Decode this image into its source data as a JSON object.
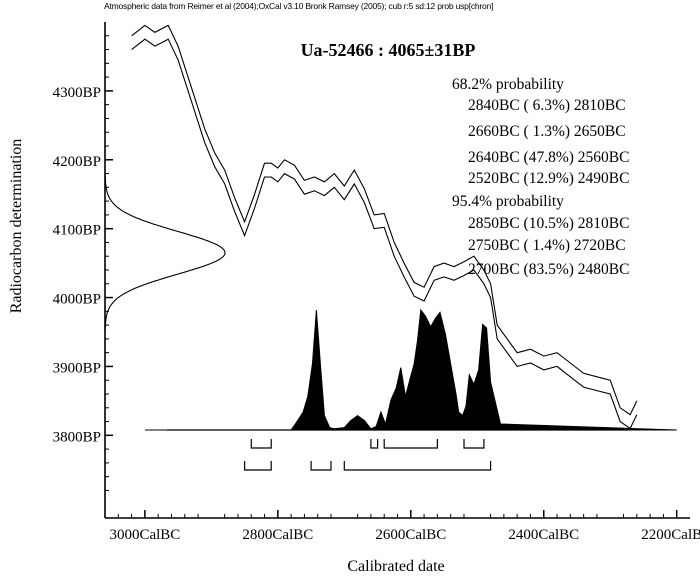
{
  "header_text": "Atmospheric data from Reimer et al (2004);OxCal v3.10 Bronk Ramsey (2005); cub r:5 sd:12 prob usp[chron]",
  "chart_data": {
    "type": "area",
    "title": "Ua-52466 : 4065±31BP",
    "xlabel": "Calibrated date",
    "ylabel": "Radiocarbon determination",
    "xlim": [
      3060,
      2180
    ],
    "ylim": [
      3680,
      4400
    ],
    "x_ticks": [
      {
        "value": 3000,
        "label": "3000CalBC"
      },
      {
        "value": 2800,
        "label": "2800CalBC"
      },
      {
        "value": 2600,
        "label": "2600CalBC"
      },
      {
        "value": 2400,
        "label": "2400CalBC"
      },
      {
        "value": 2200,
        "label": "2200CalBC"
      }
    ],
    "y_ticks": [
      {
        "value": 4300,
        "label": "4300BP"
      },
      {
        "value": 4200,
        "label": "4200BP"
      },
      {
        "value": 4100,
        "label": "4100BP"
      },
      {
        "value": 4000,
        "label": "4000BP"
      },
      {
        "value": 3900,
        "label": "3900BP"
      },
      {
        "value": 3800,
        "label": "3800BP"
      }
    ],
    "measurement": {
      "mean_bp": 4065,
      "sigma": 31
    },
    "calibration_curve": {
      "x": [
        3020,
        3000,
        2985,
        2965,
        2950,
        2930,
        2910,
        2895,
        2880,
        2865,
        2850,
        2835,
        2820,
        2810,
        2800,
        2790,
        2775,
        2760,
        2745,
        2730,
        2715,
        2700,
        2685,
        2670,
        2655,
        2640,
        2625,
        2610,
        2595,
        2580,
        2565,
        2550,
        2535,
        2520,
        2505,
        2490,
        2480,
        2470,
        2455,
        2440,
        2420,
        2400,
        2380,
        2360,
        2340,
        2320,
        2300,
        2285,
        2270,
        2260
      ],
      "y": [
        4370,
        4385,
        4375,
        4385,
        4355,
        4295,
        4235,
        4200,
        4175,
        4135,
        4100,
        4140,
        4185,
        4185,
        4178,
        4190,
        4182,
        4160,
        4165,
        4158,
        4170,
        4152,
        4175,
        4148,
        4110,
        4112,
        4070,
        4040,
        4012,
        4005,
        4035,
        4040,
        4035,
        4042,
        4050,
        4030,
        4010,
        3950,
        3930,
        3910,
        3915,
        3905,
        3910,
        3895,
        3880,
        3875,
        3870,
        3830,
        3820,
        3840
      ],
      "band_width_bp": 20
    },
    "probability_distribution": {
      "x": [
        3000,
        2780,
        2770,
        2762,
        2755,
        2748,
        2742,
        2736,
        2730,
        2722,
        2715,
        2700,
        2690,
        2680,
        2670,
        2660,
        2652,
        2645,
        2638,
        2630,
        2622,
        2615,
        2608,
        2600,
        2595,
        2590,
        2585,
        2578,
        2570,
        2563,
        2556,
        2548,
        2540,
        2532,
        2528,
        2522,
        2517,
        2512,
        2505,
        2498,
        2492,
        2486,
        2480,
        2465,
        2200
      ],
      "y": [
        0,
        0,
        0.08,
        0.15,
        0.28,
        0.55,
        1.0,
        0.55,
        0.12,
        0.02,
        0.01,
        0.02,
        0.08,
        0.12,
        0.08,
        0.01,
        0.03,
        0.15,
        0.05,
        0.25,
        0.35,
        0.52,
        0.28,
        0.45,
        0.55,
        0.74,
        1.0,
        0.95,
        0.86,
        0.93,
        0.98,
        0.8,
        0.55,
        0.3,
        0.15,
        0.12,
        0.2,
        0.46,
        0.38,
        0.5,
        0.88,
        0.85,
        0.4,
        0.05,
        0
      ]
    },
    "ranges_1sigma": [
      [
        2840,
        2810
      ],
      [
        2660,
        2650
      ],
      [
        2640,
        2560
      ],
      [
        2520,
        2490
      ]
    ],
    "ranges_2sigma": [
      [
        2850,
        2810
      ],
      [
        2750,
        2720
      ],
      [
        2700,
        2480
      ]
    ],
    "annotations": [
      "68.2% probability",
      "2840BC ( 6.3%) 2810BC",
      "2660BC ( 1.3%) 2650BC",
      "2640BC (47.8%) 2560BC",
      "2520BC (12.9%) 2490BC",
      "95.4% probability",
      "2850BC (10.5%) 2810BC",
      "2750BC ( 1.4%) 2720BC",
      "2700BC (83.5%) 2480BC"
    ],
    "grid": false
  }
}
